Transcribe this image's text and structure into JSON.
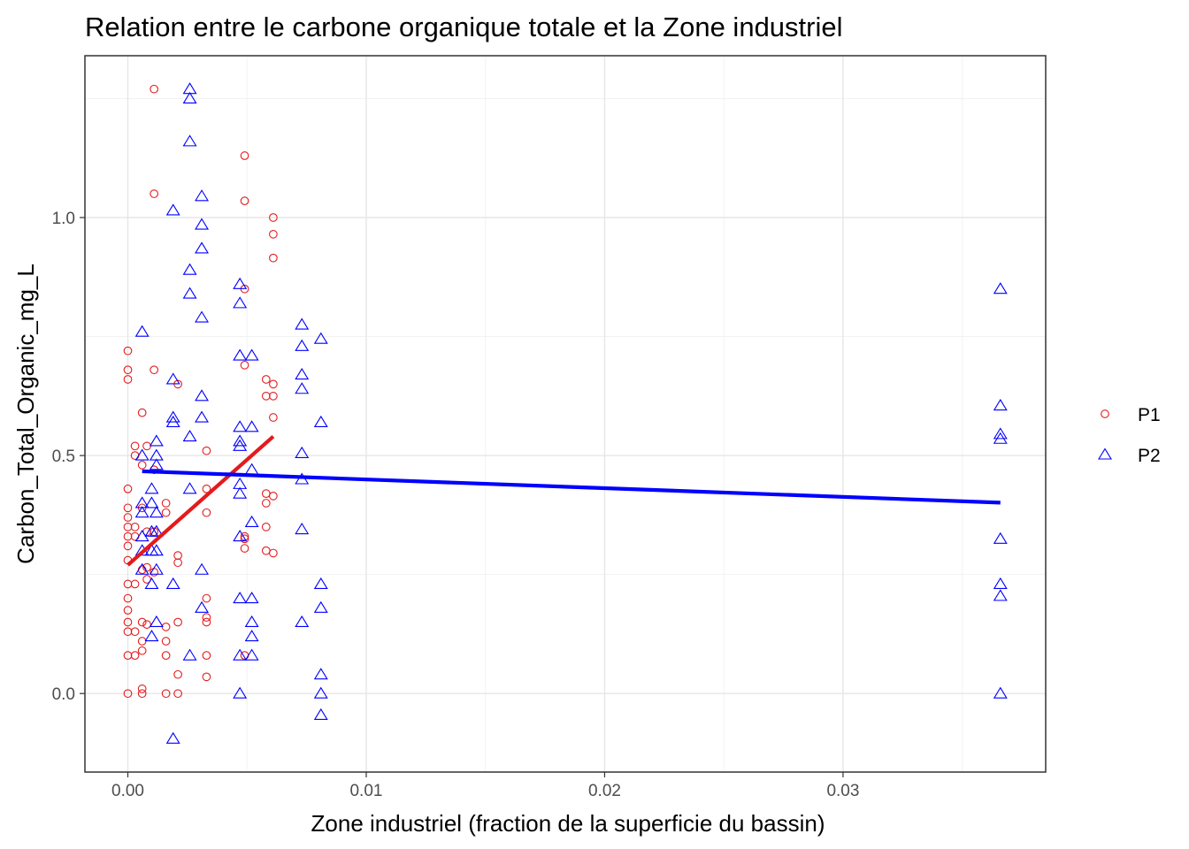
{
  "chart_data": {
    "type": "scatter",
    "title": "Relation entre le carbone organique totale et la Zone industriel",
    "xlabel": "Zone industriel (fraction de la superficie du bassin)",
    "ylabel": "Carbon_Total_Organic_mg_L",
    "xlim": [
      -0.0018,
      0.0385
    ],
    "ylim": [
      -0.165,
      1.34
    ],
    "x_ticks": [
      0.0,
      0.01,
      0.02,
      0.03
    ],
    "x_tick_labels": [
      "0.00",
      "0.01",
      "0.02",
      "0.03"
    ],
    "y_ticks": [
      0.0,
      0.5,
      1.0
    ],
    "y_tick_labels": [
      "0.0",
      "0.5",
      "1.0"
    ],
    "grid": true,
    "legend_position": "right",
    "series": [
      {
        "name": "P1",
        "marker": "circle",
        "color": "#e41a1c",
        "points": [
          [
            0.0,
            0.72
          ],
          [
            0.0,
            0.68
          ],
          [
            0.0,
            0.66
          ],
          [
            0.0,
            0.43
          ],
          [
            0.0,
            0.39
          ],
          [
            0.0,
            0.37
          ],
          [
            0.0,
            0.35
          ],
          [
            0.0,
            0.33
          ],
          [
            0.0,
            0.31
          ],
          [
            0.0,
            0.28
          ],
          [
            0.0,
            0.23
          ],
          [
            0.0,
            0.2
          ],
          [
            0.0,
            0.175
          ],
          [
            0.0,
            0.15
          ],
          [
            0.0,
            0.13
          ],
          [
            0.0,
            0.08
          ],
          [
            0.0,
            0.0
          ],
          [
            0.0003,
            0.52
          ],
          [
            0.0003,
            0.5
          ],
          [
            0.0003,
            0.35
          ],
          [
            0.0003,
            0.33
          ],
          [
            0.0003,
            0.23
          ],
          [
            0.0003,
            0.13
          ],
          [
            0.0003,
            0.08
          ],
          [
            0.0006,
            0.59
          ],
          [
            0.0006,
            0.48
          ],
          [
            0.0006,
            0.39
          ],
          [
            0.0006,
            0.26
          ],
          [
            0.0006,
            0.15
          ],
          [
            0.0006,
            0.11
          ],
          [
            0.0006,
            0.09
          ],
          [
            0.0006,
            0.01
          ],
          [
            0.0006,
            0.0
          ],
          [
            0.0008,
            0.52
          ],
          [
            0.0008,
            0.34
          ],
          [
            0.0008,
            0.265
          ],
          [
            0.0008,
            0.24
          ],
          [
            0.0008,
            0.145
          ],
          [
            0.0011,
            1.27
          ],
          [
            0.0011,
            1.05
          ],
          [
            0.0011,
            0.68
          ],
          [
            0.0011,
            0.47
          ],
          [
            0.0011,
            0.34
          ],
          [
            0.0011,
            0.255
          ],
          [
            0.0016,
            0.4
          ],
          [
            0.0016,
            0.38
          ],
          [
            0.0016,
            0.14
          ],
          [
            0.0016,
            0.11
          ],
          [
            0.0016,
            0.08
          ],
          [
            0.0016,
            0.0
          ],
          [
            0.0021,
            0.65
          ],
          [
            0.0021,
            0.29
          ],
          [
            0.0021,
            0.275
          ],
          [
            0.0021,
            0.15
          ],
          [
            0.0021,
            0.04
          ],
          [
            0.0021,
            0.0
          ],
          [
            0.0033,
            0.51
          ],
          [
            0.0033,
            0.43
          ],
          [
            0.0033,
            0.38
          ],
          [
            0.0033,
            0.2
          ],
          [
            0.0033,
            0.16
          ],
          [
            0.0033,
            0.15
          ],
          [
            0.0033,
            0.08
          ],
          [
            0.0033,
            0.035
          ],
          [
            0.0049,
            1.13
          ],
          [
            0.0049,
            1.035
          ],
          [
            0.0049,
            0.85
          ],
          [
            0.0049,
            0.69
          ],
          [
            0.0049,
            0.33
          ],
          [
            0.0049,
            0.325
          ],
          [
            0.0049,
            0.305
          ],
          [
            0.0049,
            0.08
          ],
          [
            0.0058,
            0.66
          ],
          [
            0.0058,
            0.625
          ],
          [
            0.0058,
            0.42
          ],
          [
            0.0058,
            0.4
          ],
          [
            0.0058,
            0.35
          ],
          [
            0.0058,
            0.3
          ],
          [
            0.0061,
            1.0
          ],
          [
            0.0061,
            0.965
          ],
          [
            0.0061,
            0.915
          ],
          [
            0.0061,
            0.65
          ],
          [
            0.0061,
            0.625
          ],
          [
            0.0061,
            0.58
          ],
          [
            0.0061,
            0.415
          ],
          [
            0.0061,
            0.295
          ]
        ],
        "trend_line": [
          [
            0.0,
            0.27
          ],
          [
            0.0061,
            0.54
          ]
        ]
      },
      {
        "name": "P2",
        "marker": "triangle",
        "color": "#0000ff",
        "points": [
          [
            0.0006,
            0.76
          ],
          [
            0.0006,
            0.5
          ],
          [
            0.0006,
            0.4
          ],
          [
            0.0006,
            0.38
          ],
          [
            0.0006,
            0.33
          ],
          [
            0.0006,
            0.3
          ],
          [
            0.0006,
            0.26
          ],
          [
            0.001,
            0.43
          ],
          [
            0.001,
            0.4
          ],
          [
            0.001,
            0.34
          ],
          [
            0.001,
            0.3
          ],
          [
            0.001,
            0.23
          ],
          [
            0.001,
            0.12
          ],
          [
            0.0012,
            0.53
          ],
          [
            0.0012,
            0.5
          ],
          [
            0.0012,
            0.48
          ],
          [
            0.0012,
            0.38
          ],
          [
            0.0012,
            0.34
          ],
          [
            0.0012,
            0.3
          ],
          [
            0.0012,
            0.26
          ],
          [
            0.0012,
            0.15
          ],
          [
            0.0019,
            1.015
          ],
          [
            0.0019,
            0.66
          ],
          [
            0.0019,
            0.58
          ],
          [
            0.0019,
            0.57
          ],
          [
            0.0019,
            0.23
          ],
          [
            0.0019,
            -0.095
          ],
          [
            0.0026,
            1.27
          ],
          [
            0.0026,
            1.25
          ],
          [
            0.0026,
            1.16
          ],
          [
            0.0026,
            0.89
          ],
          [
            0.0026,
            0.84
          ],
          [
            0.0026,
            0.54
          ],
          [
            0.0026,
            0.43
          ],
          [
            0.0026,
            0.08
          ],
          [
            0.0031,
            1.045
          ],
          [
            0.0031,
            0.985
          ],
          [
            0.0031,
            0.935
          ],
          [
            0.0031,
            0.79
          ],
          [
            0.0031,
            0.625
          ],
          [
            0.0031,
            0.58
          ],
          [
            0.0031,
            0.26
          ],
          [
            0.0031,
            0.18
          ],
          [
            0.0047,
            0.86
          ],
          [
            0.0047,
            0.82
          ],
          [
            0.0047,
            0.71
          ],
          [
            0.0047,
            0.56
          ],
          [
            0.0047,
            0.53
          ],
          [
            0.0047,
            0.52
          ],
          [
            0.0047,
            0.44
          ],
          [
            0.0047,
            0.42
          ],
          [
            0.0047,
            0.33
          ],
          [
            0.0047,
            0.2
          ],
          [
            0.0047,
            0.08
          ],
          [
            0.0047,
            0.0
          ],
          [
            0.0052,
            0.71
          ],
          [
            0.0052,
            0.56
          ],
          [
            0.0052,
            0.47
          ],
          [
            0.0052,
            0.36
          ],
          [
            0.0052,
            0.2
          ],
          [
            0.0052,
            0.15
          ],
          [
            0.0052,
            0.12
          ],
          [
            0.0052,
            0.08
          ],
          [
            0.0073,
            0.775
          ],
          [
            0.0073,
            0.73
          ],
          [
            0.0073,
            0.67
          ],
          [
            0.0073,
            0.64
          ],
          [
            0.0073,
            0.505
          ],
          [
            0.0073,
            0.45
          ],
          [
            0.0073,
            0.345
          ],
          [
            0.0073,
            0.15
          ],
          [
            0.0081,
            0.745
          ],
          [
            0.0081,
            0.57
          ],
          [
            0.0081,
            0.23
          ],
          [
            0.0081,
            0.18
          ],
          [
            0.0081,
            0.04
          ],
          [
            0.0081,
            0.0
          ],
          [
            0.0081,
            -0.045
          ],
          [
            0.0366,
            0.85
          ],
          [
            0.0366,
            0.605
          ],
          [
            0.0366,
            0.545
          ],
          [
            0.0366,
            0.535
          ],
          [
            0.0366,
            0.325
          ],
          [
            0.0366,
            0.23
          ],
          [
            0.0366,
            0.205
          ],
          [
            0.0366,
            0.0
          ]
        ],
        "trend_line": [
          [
            0.0006,
            0.467
          ],
          [
            0.0366,
            0.401
          ]
        ]
      }
    ]
  }
}
